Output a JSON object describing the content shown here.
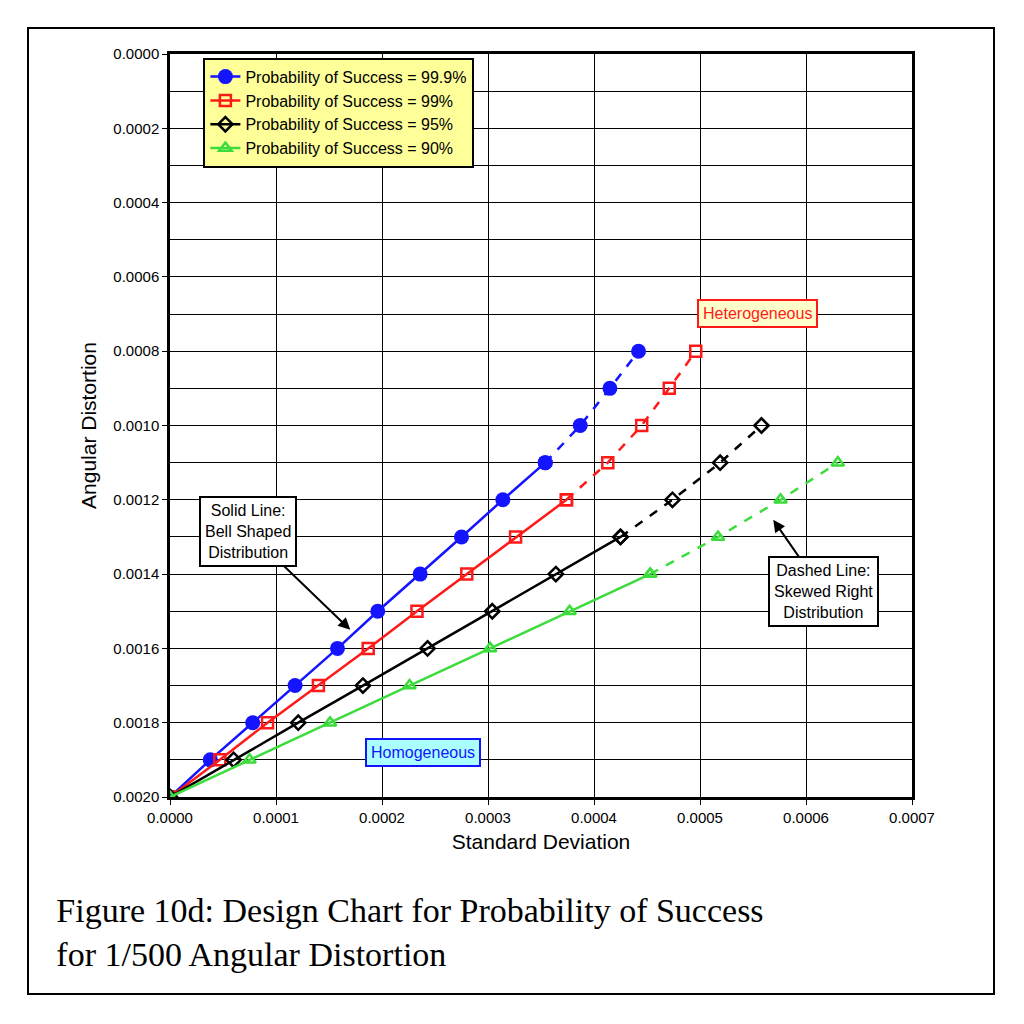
{
  "chart_data": {
    "type": "line",
    "title": "Figure 10d: Design Chart for Probability of Success\nfor 1/500 Angular Distortion",
    "x_label": "Standard Deviation",
    "y_label": "Angular Distortion",
    "xlim": [
      0,
      0.0007
    ],
    "xticks": [
      {
        "value": 0,
        "label": "0.0000"
      },
      0.0001,
      0.0002,
      0.0003,
      0.0004,
      0.0005,
      0.0006,
      0.0007
    ],
    "ylim": [
      0.002,
      0
    ],
    "yticks": [
      {
        "value": 0,
        "label": "0.0000"
      },
      0.0002,
      0.0004,
      0.0006,
      0.0008,
      {
        "value": 0.001,
        "label": "0.0010"
      },
      0.0012,
      0.0014,
      0.0016,
      0.0018,
      {
        "value": 0.002,
        "label": "0.0020"
      }
    ],
    "grid": true,
    "legend": "top left",
    "series": [
      {
        "name": "Probability of Success = 99.9%",
        "color": "#1414ff",
        "marker": "circle",
        "line_style": "solid",
        "x": [
          0,
          3.8e-05,
          7.8e-05,
          0.000118,
          0.000158,
          0.000196,
          0.000236,
          0.000275,
          0.000314,
          0.000354
        ],
        "y": [
          0.002,
          0.0019,
          0.0018,
          0.0017,
          0.0016,
          0.0015,
          0.0014,
          0.0013,
          0.0012,
          0.0011
        ]
      },
      {
        "name": "Probability of Success = 99.9%",
        "color": "#1414ff",
        "marker": "circle",
        "line_style": "dashed",
        "x": [
          0.000354,
          0.000387,
          0.000415,
          0.000442
        ],
        "y": [
          0.0011,
          0.001,
          0.0009,
          0.0008
        ]
      },
      {
        "name": "Probability of Success = 99%",
        "color": "#ff1a1a",
        "marker": "square-open",
        "line_style": "solid",
        "x": [
          0,
          4.7e-05,
          9.2e-05,
          0.00014,
          0.000187,
          0.000233,
          0.00028,
          0.000326,
          0.000374
        ],
        "y": [
          0.002,
          0.0019,
          0.0018,
          0.0017,
          0.0016,
          0.0015,
          0.0014,
          0.0013,
          0.0012
        ]
      },
      {
        "name": "Probability of Success = 99%",
        "color": "#ff1a1a",
        "marker": "square-open",
        "line_style": "dashed",
        "x": [
          0.000374,
          0.000413,
          0.000445,
          0.000471,
          0.000496
        ],
        "y": [
          0.0012,
          0.0011,
          0.001,
          0.0009,
          0.0008
        ]
      },
      {
        "name": "Probability of Success = 95%",
        "color": "#000000",
        "marker": "diamond-open",
        "line_style": "solid",
        "x": [
          0,
          6e-05,
          0.000121,
          0.000182,
          0.000243,
          0.000304,
          0.000364,
          0.000425
        ],
        "y": [
          0.002,
          0.0019,
          0.0018,
          0.0017,
          0.0016,
          0.0015,
          0.0014,
          0.0013
        ]
      },
      {
        "name": "Probability of Success = 95%",
        "color": "#000000",
        "marker": "diamond-open",
        "line_style": "dashed",
        "x": [
          0.000425,
          0.000474,
          0.000519,
          0.000558
        ],
        "y": [
          0.0013,
          0.0012,
          0.0011,
          0.001
        ]
      },
      {
        "name": "Probability of Success = 90%",
        "color": "#3ddc3d",
        "marker": "triangle-up-open",
        "line_style": "solid",
        "x": [
          0,
          7.5e-05,
          0.000151,
          0.000226,
          0.000302,
          0.000377,
          0.000453
        ],
        "y": [
          0.002,
          0.0019,
          0.0018,
          0.0017,
          0.0016,
          0.0015,
          0.0014
        ]
      },
      {
        "name": "Probability of Success = 90%",
        "color": "#3ddc3d",
        "marker": "triangle-up-open",
        "line_style": "dashed",
        "x": [
          0.000453,
          0.000517,
          0.000576,
          0.00063
        ],
        "y": [
          0.0014,
          0.0013,
          0.0012,
          0.0011
        ]
      }
    ],
    "annotations": [
      {
        "text": "Heterogeneous",
        "color": "#ff1a1a"
      },
      {
        "text": "Homogeneous",
        "color": "#1414ff"
      },
      {
        "text": "Solid Line:\nBell Shaped\nDistribution",
        "color": "#000000"
      },
      {
        "text": "Dashed Line:\nSkewed Right\nDistribution",
        "color": "#000000"
      }
    ]
  }
}
